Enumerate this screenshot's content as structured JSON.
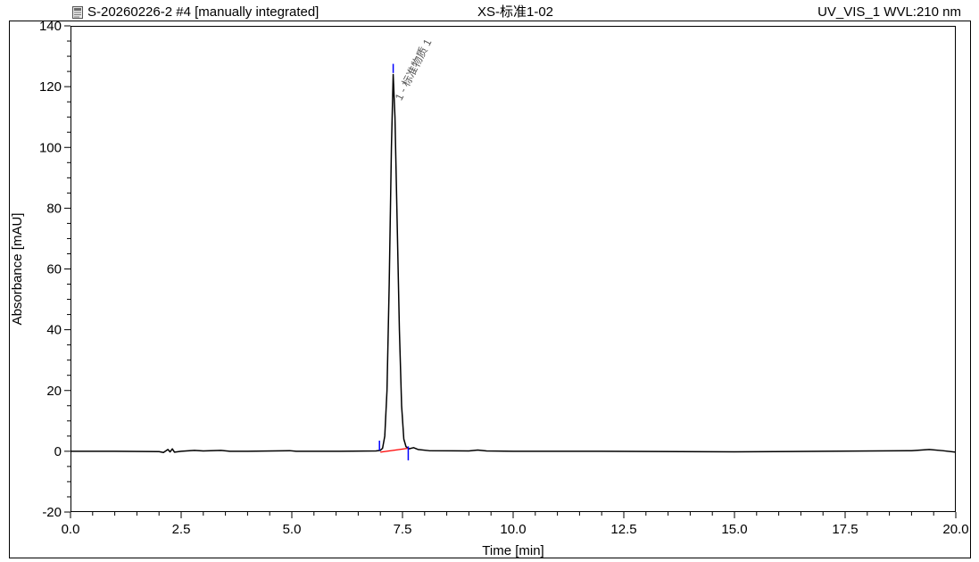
{
  "header": {
    "sample_label": "S-20260226-2 #4 [manually integrated]",
    "injection_name": "XS-标准1-02",
    "channel_label": "UV_VIS_1 WVL:210 nm",
    "icon": "sequence-doc-icon"
  },
  "chart_data": {
    "type": "line",
    "xlabel": "Time [min]",
    "ylabel": "Absorbance [mAU]",
    "xlim": [
      0.0,
      20.0
    ],
    "ylim": [
      -20,
      140
    ],
    "x_ticks": [
      "0.0",
      "2.5",
      "5.0",
      "7.5",
      "10.0",
      "12.5",
      "15.0",
      "17.5",
      "20.0"
    ],
    "y_ticks": [
      "-20",
      "0",
      "20",
      "40",
      "60",
      "80",
      "100",
      "120",
      "140"
    ],
    "grid": false,
    "series": [
      {
        "color": "#000000",
        "points": [
          [
            0.0,
            0.0
          ],
          [
            1.0,
            0.0
          ],
          [
            2.0,
            -0.1
          ],
          [
            2.1,
            -0.4
          ],
          [
            2.2,
            0.6
          ],
          [
            2.25,
            -0.2
          ],
          [
            2.3,
            0.8
          ],
          [
            2.35,
            -0.3
          ],
          [
            2.5,
            0.0
          ],
          [
            2.8,
            0.3
          ],
          [
            3.0,
            0.1
          ],
          [
            3.4,
            0.3
          ],
          [
            3.6,
            0.0
          ],
          [
            4.0,
            0.0
          ],
          [
            4.95,
            0.2
          ],
          [
            5.1,
            0.0
          ],
          [
            6.0,
            0.0
          ],
          [
            6.9,
            0.1
          ],
          [
            7.0,
            0.3
          ],
          [
            7.05,
            1.0
          ],
          [
            7.1,
            5.0
          ],
          [
            7.15,
            20.0
          ],
          [
            7.2,
            55.0
          ],
          [
            7.25,
            100.0
          ],
          [
            7.29,
            124.0
          ],
          [
            7.33,
            110.0
          ],
          [
            7.38,
            75.0
          ],
          [
            7.43,
            40.0
          ],
          [
            7.48,
            15.0
          ],
          [
            7.53,
            4.0
          ],
          [
            7.58,
            1.5
          ],
          [
            7.65,
            0.8
          ],
          [
            7.75,
            1.2
          ],
          [
            7.85,
            0.6
          ],
          [
            8.1,
            0.2
          ],
          [
            9.0,
            0.1
          ],
          [
            9.2,
            0.4
          ],
          [
            9.4,
            0.1
          ],
          [
            10.0,
            0.0
          ],
          [
            12.0,
            0.0
          ],
          [
            15.0,
            -0.2
          ],
          [
            17.0,
            0.0
          ],
          [
            19.0,
            0.2
          ],
          [
            19.4,
            0.6
          ],
          [
            19.7,
            0.2
          ],
          [
            20.0,
            -0.3
          ]
        ]
      }
    ],
    "baseline": {
      "color": "#ff0000",
      "points": [
        [
          7.0,
          -0.3
        ],
        [
          7.63,
          1.0
        ]
      ]
    },
    "integration_markers": {
      "color": "#0000ff",
      "times": [
        6.98,
        7.29,
        7.63
      ]
    },
    "peak_label": {
      "text": "1 - 标准物质 1",
      "x": 7.29,
      "y": 124.0
    }
  }
}
